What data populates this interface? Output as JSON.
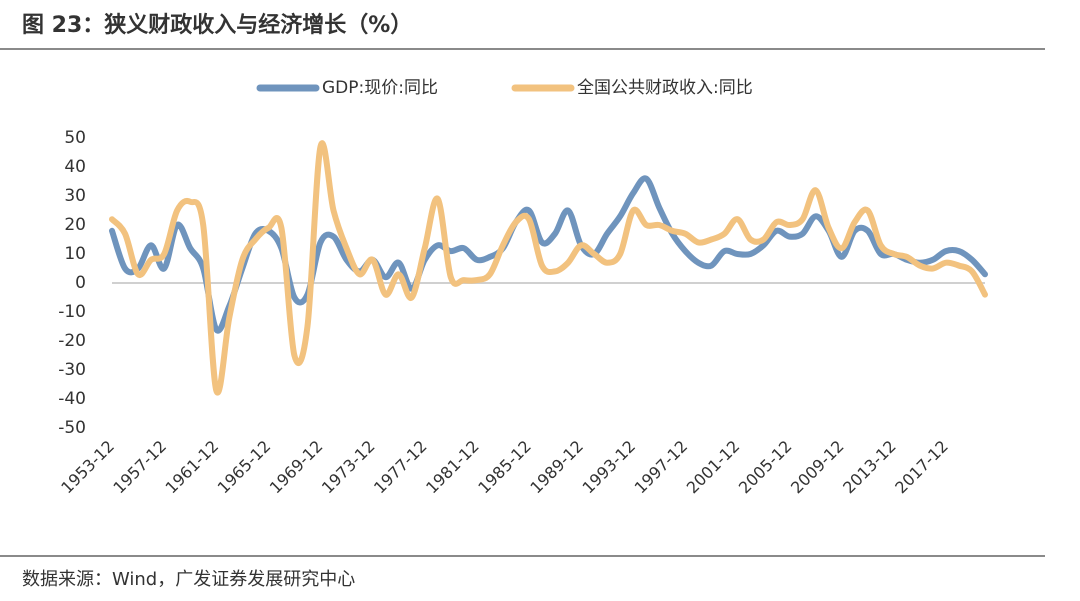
{
  "chart_data": {
    "type": "line",
    "title": "图 23：狭义财政收入与经济增长（%）",
    "source": "数据来源：Wind，广发证券发展研究中心",
    "categories": [
      "1953-12",
      null,
      null,
      null,
      "1957-12",
      null,
      null,
      null,
      "1961-12",
      null,
      null,
      null,
      "1965-12",
      null,
      null,
      null,
      "1969-12",
      null,
      null,
      null,
      "1973-12",
      null,
      null,
      null,
      "1977-12",
      null,
      null,
      null,
      "1981-12",
      null,
      null,
      null,
      "1985-12",
      null,
      null,
      null,
      "1989-12",
      null,
      null,
      null,
      "1993-12",
      null,
      null,
      null,
      "1997-12",
      null,
      null,
      null,
      "2001-12",
      null,
      null,
      null,
      "2005-12",
      null,
      null,
      null,
      "2009-12",
      null,
      null,
      null,
      "2013-12",
      null,
      null,
      null,
      "2017-12",
      null,
      null,
      null
    ],
    "series": [
      {
        "name": "GDP:现价:同比",
        "color": "#6f94bd",
        "values": [
          18,
          5,
          5,
          13,
          5,
          20,
          12,
          5,
          -16,
          -8,
          5,
          17,
          18,
          12,
          -5,
          -4,
          14,
          16,
          8,
          4,
          8,
          2,
          7,
          -2,
          8,
          13,
          11,
          12,
          8,
          9,
          12,
          21,
          25,
          14,
          17,
          25,
          13,
          10,
          17,
          23,
          31,
          36,
          26,
          17,
          11,
          7,
          6,
          11,
          10,
          10,
          13,
          18,
          16,
          17,
          23,
          18,
          9,
          18,
          18,
          10,
          10,
          8,
          7,
          8,
          11,
          11,
          8,
          3
        ]
      },
      {
        "name": "全国公共财政收入:同比",
        "color": "#f2c27f",
        "values": [
          22,
          17,
          3,
          8,
          10,
          25,
          28,
          20,
          -37,
          -12,
          8,
          15,
          19,
          19,
          -25,
          -15,
          47,
          25,
          12,
          3,
          8,
          -4,
          3,
          -5,
          12,
          29,
          2,
          1,
          1,
          3,
          13,
          21,
          22,
          6,
          4,
          7,
          13,
          10,
          7,
          10,
          25,
          20,
          20,
          18,
          17,
          14,
          15,
          17,
          22,
          15,
          15,
          21,
          20,
          22,
          32,
          19,
          12,
          21,
          25,
          13,
          10,
          9,
          6,
          5,
          7,
          6,
          4,
          -4
        ]
      }
    ],
    "ylim": [
      -50,
      50
    ],
    "yticks": [
      -50,
      -40,
      -30,
      -20,
      -10,
      0,
      10,
      20,
      30,
      40,
      50
    ],
    "grid": false,
    "legend": "top"
  }
}
